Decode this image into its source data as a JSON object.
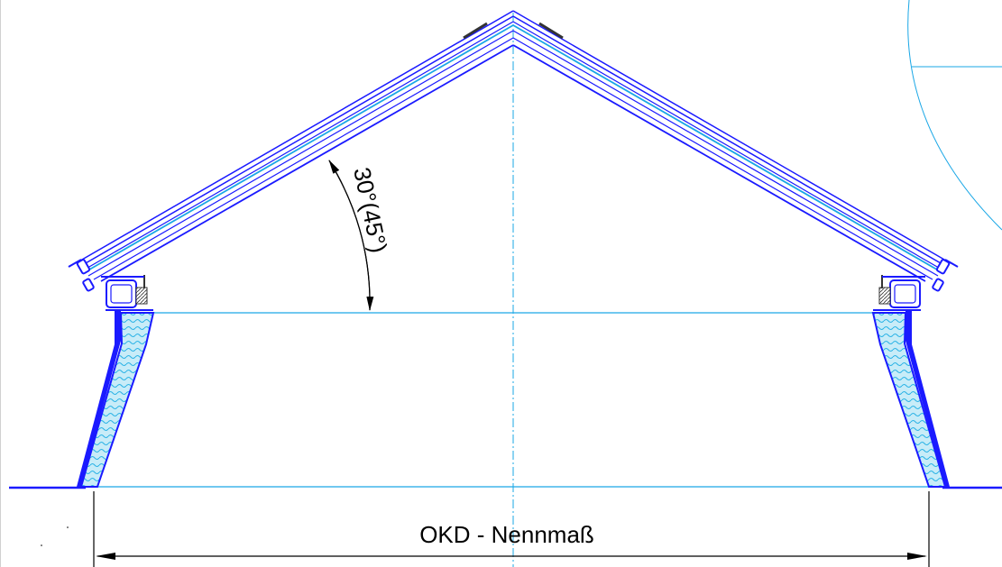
{
  "drawing": {
    "angle_label": "30°(45°)",
    "dimension_label": "OKD - Nennmaß"
  },
  "colors": {
    "outline": "#1a1aff",
    "light_line": "#1aa7e6",
    "insulation_fill": "#bfe8f6",
    "frame_dark": "#333333",
    "text": "#000000"
  }
}
